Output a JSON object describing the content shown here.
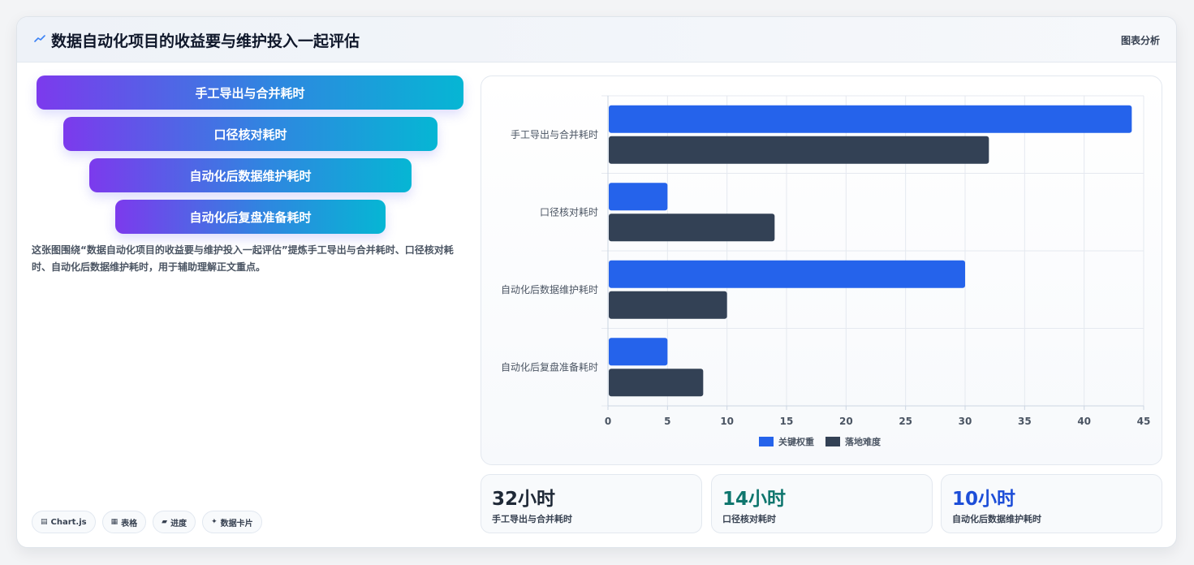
{
  "header": {
    "title": "数据自动化项目的收益要与维护投入一起评估",
    "tag": "图表分析",
    "icon": "trend-line-icon"
  },
  "funnel": {
    "items": [
      {
        "label": "手工导出与合并耗时"
      },
      {
        "label": "口径核对耗时"
      },
      {
        "label": "自动化后数据维护耗时"
      },
      {
        "label": "自动化后复盘准备耗时"
      }
    ]
  },
  "description": "这张图围绕“数据自动化项目的收益要与维护投入一起评估”提炼手工导出与合并耗时、口径核对耗时、自动化后数据维护耗时，用于辅助理解正文重点。",
  "chips": [
    {
      "icon": "chart-icon",
      "glyph": "▤",
      "label": "Chart.js"
    },
    {
      "icon": "table-icon",
      "glyph": "▦",
      "label": "表格"
    },
    {
      "icon": "progress-icon",
      "glyph": "▰",
      "label": "进度"
    },
    {
      "icon": "sparkle-icon",
      "glyph": "✦",
      "label": "数据卡片"
    }
  ],
  "chart_data": {
    "type": "bar",
    "orientation": "horizontal",
    "categories": [
      "手工导出与合并耗时",
      "口径核对耗时",
      "自动化后数据维护耗时",
      "自动化后复盘准备耗时"
    ],
    "series": [
      {
        "name": "关键权重",
        "values": [
          44,
          5,
          30,
          5
        ],
        "color": "#2563eb"
      },
      {
        "name": "落地难度",
        "values": [
          32,
          14,
          10,
          8
        ],
        "color": "#334155"
      }
    ],
    "xlim": [
      0,
      45
    ],
    "xticks": [
      0,
      5,
      10,
      15,
      20,
      25,
      30,
      35,
      40,
      45
    ],
    "grid": true,
    "legend": "bottom"
  },
  "stats": [
    {
      "value": "32小时",
      "label": "手工导出与合并耗时",
      "color": "#1f2937"
    },
    {
      "value": "14小时",
      "label": "口径核对耗时",
      "color": "#0f766e"
    },
    {
      "value": "10小时",
      "label": "自动化后数据维护耗时",
      "color": "#1d4ed8"
    }
  ]
}
